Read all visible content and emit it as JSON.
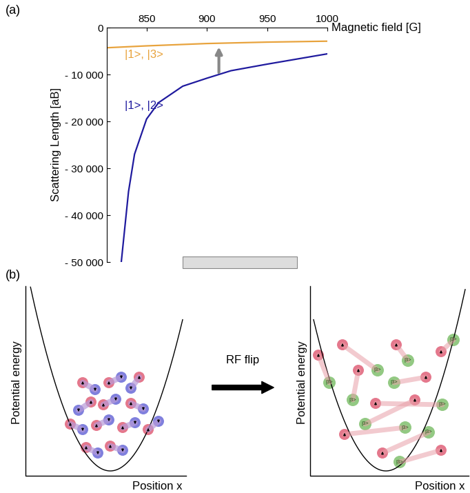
{
  "chart_data": {
    "type": "line",
    "panel_label": "(a)",
    "xlabel": "Magnetic field [G]",
    "ylabel": "Scattering Length [aB]",
    "xlim": [
      817,
      1000
    ],
    "ylim": [
      -50000,
      0
    ],
    "xticks": [
      850,
      900,
      950,
      1000
    ],
    "yticks": [
      {
        "value": 0,
        "label": "0"
      },
      {
        "value": -10000,
        "label": "- 10 000"
      },
      {
        "value": -20000,
        "label": "- 20 000"
      },
      {
        "value": -30000,
        "label": "- 30 000"
      },
      {
        "value": -40000,
        "label": "- 40 000"
      },
      {
        "value": -50000,
        "label": "- 50 000"
      }
    ],
    "series": [
      {
        "name": "|1>, |3>",
        "color": "#e8a33d",
        "x": [
          817,
          850,
          900,
          950,
          1000
        ],
        "values": [
          -4300,
          -3900,
          -3400,
          -3100,
          -2900
        ]
      },
      {
        "name": "|1>, |2>",
        "color": "#1f1a9e",
        "x": [
          829,
          835,
          840,
          850,
          860,
          880,
          900,
          920,
          950,
          1000
        ],
        "values": [
          -50000,
          -35000,
          -27000,
          -19500,
          -16000,
          -12500,
          -10800,
          -9200,
          -7800,
          -5600
        ]
      }
    ],
    "shaded_range": [
      880,
      975
    ],
    "arrow": {
      "x": 910,
      "from": -10000,
      "to": -3700
    }
  },
  "diagram": {
    "panel_label": "(b)",
    "arrow_label": "RF flip",
    "before": {
      "xlabel": "Position x",
      "ylabel": "Potential energy"
    },
    "after": {
      "xlabel": "Position x",
      "ylabel": "Potential energy",
      "atom_label": "|3>"
    }
  }
}
